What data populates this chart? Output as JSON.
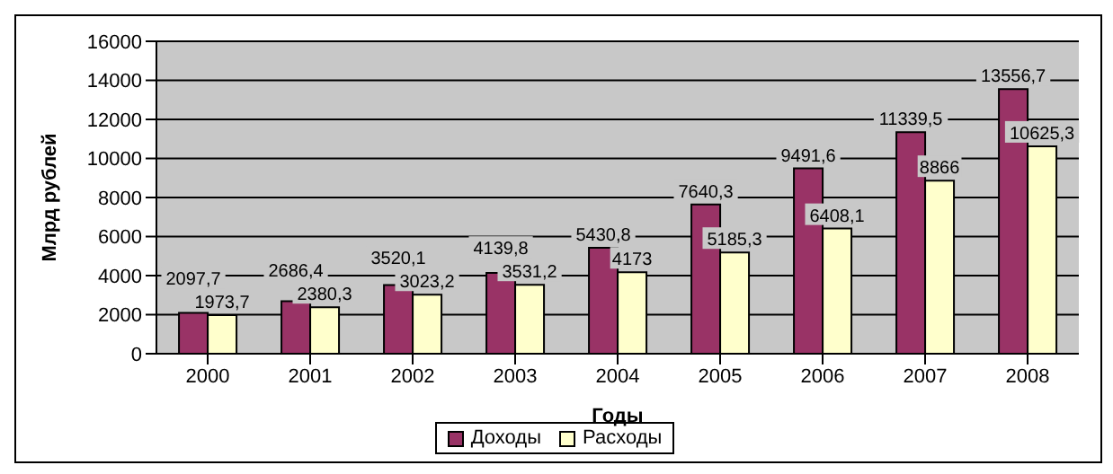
{
  "chart_data": {
    "type": "bar",
    "xlabel": "Годы",
    "ylabel": "Млрд рублей",
    "categories": [
      "2000",
      "2001",
      "2002",
      "2003",
      "2004",
      "2005",
      "2006",
      "2007",
      "2008"
    ],
    "series": [
      {
        "name": "Доходы",
        "color": "#993366",
        "values": [
          2097.7,
          2686.4,
          3520.1,
          4139.8,
          5430.8,
          7640.3,
          9491.6,
          11339.5,
          13556.7
        ],
        "value_labels": [
          "2097,7",
          "2686,4",
          "3520,1",
          "4139,8",
          "5430,8",
          "7640,3",
          "9491,6",
          "11339,5",
          "13556,7"
        ]
      },
      {
        "name": "Расходы",
        "color": "#ffffcc",
        "values": [
          1973.7,
          2380.3,
          3023.2,
          3531.2,
          4173,
          5185.3,
          6408.1,
          8866,
          10625.3
        ],
        "value_labels": [
          "1973,7",
          "2380,3",
          "3023,2",
          "3531,2",
          "4173",
          "5185,3",
          "6408,1",
          "8866",
          "10625,3"
        ]
      }
    ],
    "ylim": [
      0,
      16000
    ],
    "yticks": [
      0,
      2000,
      4000,
      6000,
      8000,
      10000,
      12000,
      14000,
      16000
    ],
    "grid": "y",
    "legend": "bottom"
  }
}
